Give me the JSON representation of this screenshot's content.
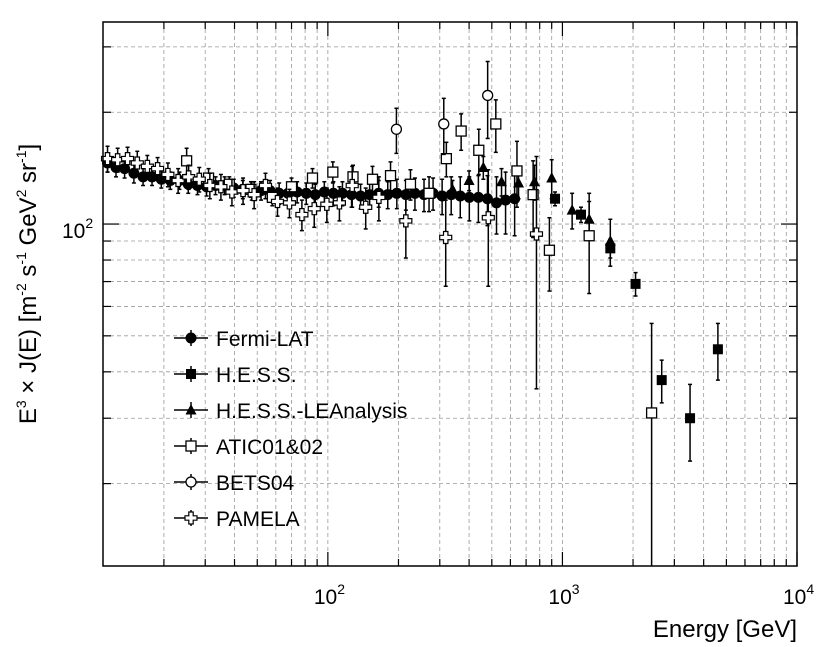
{
  "chart_data": {
    "type": "scatter",
    "title": "",
    "xlabel": "Energy [GeV]",
    "ylabel": "E^3 × J(E) [m^-2 s^-1 GeV^2 sr^-1]",
    "ylabel_parts": {
      "E": "E",
      "E_exp": "3",
      "times": " × J(E) [m",
      "m_exp": "-2",
      "s": " s",
      "s_exp": "-1",
      "gev": " GeV",
      "gev_exp": "2",
      "sr": " sr",
      "sr_exp": "-1",
      "close": "]"
    },
    "x_scale": "log",
    "y_scale": "log",
    "xlim": [
      11,
      10000
    ],
    "ylim": [
      12,
      350
    ],
    "grid": true,
    "legend_position": "lower-left",
    "x_ticks": [
      {
        "base": "10",
        "exp": "2",
        "value": 100
      },
      {
        "base": "10",
        "exp": "3",
        "value": 1000
      },
      {
        "base": "10",
        "exp": "4",
        "value": 10000
      }
    ],
    "y_ticks": [
      {
        "base": "10",
        "exp": "2",
        "value": 100
      }
    ],
    "series": [
      {
        "name": "Fermi-LAT",
        "marker": "circle-filled",
        "points": [
          [
            11.5,
            146,
            8
          ],
          [
            12.5,
            142,
            8
          ],
          [
            13.6,
            141,
            8
          ],
          [
            14.9,
            137,
            8
          ],
          [
            16.3,
            134,
            7
          ],
          [
            17.8,
            134,
            7
          ],
          [
            19.5,
            132,
            7
          ],
          [
            21.3,
            131,
            7
          ],
          [
            23.3,
            131,
            7
          ],
          [
            25.4,
            128,
            7
          ],
          [
            27.8,
            127,
            7
          ],
          [
            30.4,
            126,
            7
          ],
          [
            33.2,
            127,
            7
          ],
          [
            36.3,
            127,
            7
          ],
          [
            39.7,
            125,
            7
          ],
          [
            43.4,
            124,
            7
          ],
          [
            47.4,
            123,
            7
          ],
          [
            51.9,
            123,
            7
          ],
          [
            56.7,
            123,
            8
          ],
          [
            62.0,
            121,
            8
          ],
          [
            67.7,
            121,
            8
          ],
          [
            74.0,
            122,
            8
          ],
          [
            80.9,
            121,
            8
          ],
          [
            88.4,
            120,
            8
          ],
          [
            96.6,
            122,
            8
          ],
          [
            105.6,
            121,
            9
          ],
          [
            115.4,
            121,
            9
          ],
          [
            126.2,
            120,
            9
          ],
          [
            137.9,
            119,
            9
          ],
          [
            150.7,
            120,
            10
          ],
          [
            164.7,
            121,
            10
          ],
          [
            180.0,
            120,
            10
          ],
          [
            196.8,
            121,
            11
          ],
          [
            215.1,
            120,
            11
          ],
          [
            235.1,
            121,
            12
          ],
          [
            257.0,
            120,
            12
          ],
          [
            280.9,
            121,
            12
          ],
          [
            307.0,
            119,
            13
          ],
          [
            335.6,
            120,
            14
          ],
          [
            366.8,
            119,
            15
          ],
          [
            400.9,
            118,
            16
          ],
          [
            438.2,
            118,
            17
          ],
          [
            479.0,
            117,
            18
          ],
          [
            523.6,
            114,
            20
          ],
          [
            572.3,
            116,
            22
          ],
          [
            625.5,
            117,
            24
          ]
        ]
      },
      {
        "name": "H.E.S.S.",
        "marker": "square-filled",
        "points": [
          [
            930,
            117,
            5
          ],
          [
            1200,
            106,
            5
          ],
          [
            1600,
            86,
            5
          ],
          [
            2050,
            69,
            5
          ],
          [
            2650,
            38,
            5
          ],
          [
            3500,
            30,
            7
          ],
          [
            4600,
            46,
            8
          ]
        ]
      },
      {
        "name": "H.E.S.S.-LEAnalysis",
        "marker": "triangle-filled",
        "points": [
          [
            340,
            124,
            7
          ],
          [
            400,
            131,
            8
          ],
          [
            460,
            142,
            10
          ],
          [
            550,
            130,
            11
          ],
          [
            650,
            129,
            12
          ],
          [
            760,
            130,
            14
          ],
          [
            900,
            133,
            16
          ],
          [
            1100,
            109,
            12
          ],
          [
            1300,
            103,
            12
          ],
          [
            1600,
            90,
            13
          ]
        ]
      },
      {
        "name": "ATIC01&02",
        "marker": "square-open",
        "points": [
          [
            25,
            148,
            12
          ],
          [
            31,
            133,
            8
          ],
          [
            38,
            128,
            6
          ],
          [
            47,
            124,
            6
          ],
          [
            58,
            118,
            6
          ],
          [
            70,
            126,
            7
          ],
          [
            86,
            133,
            8
          ],
          [
            105,
            138,
            9
          ],
          [
            128,
            134,
            10
          ],
          [
            155,
            132,
            11
          ],
          [
            185,
            135,
            12
          ],
          [
            225,
            128,
            12
          ],
          [
            270,
            121,
            13
          ],
          [
            320,
            150,
            16
          ],
          [
            370,
            178,
            20
          ],
          [
            440,
            158,
            22
          ],
          [
            520,
            186,
            30
          ],
          [
            640,
            139,
            28
          ],
          [
            750,
            120,
            28
          ],
          [
            880,
            85,
            19
          ],
          [
            1300,
            93,
            28
          ],
          [
            2400,
            31,
            23
          ]
        ]
      },
      {
        "name": "BETS04",
        "marker": "circle-open",
        "points": [
          [
            196,
            180,
            25
          ],
          [
            312,
            186,
            32
          ],
          [
            480,
            222,
            52
          ]
        ]
      },
      {
        "name": "PAMELA",
        "marker": "cross-open",
        "points": [
          [
            11.5,
            150,
            12
          ],
          [
            12.7,
            149,
            11
          ],
          [
            14.0,
            150,
            11
          ],
          [
            15.4,
            146,
            11
          ],
          [
            17.0,
            143,
            10
          ],
          [
            18.8,
            141,
            10
          ],
          [
            20.8,
            136,
            10
          ],
          [
            23.0,
            131,
            10
          ],
          [
            25.5,
            134,
            10
          ],
          [
            28.3,
            132,
            10
          ],
          [
            31.4,
            127,
            10
          ],
          [
            35.0,
            126,
            10
          ],
          [
            39.0,
            122,
            10
          ],
          [
            43.5,
            123,
            10
          ],
          [
            48.5,
            120,
            10
          ],
          [
            54.2,
            127,
            10
          ],
          [
            61.0,
            115,
            10
          ],
          [
            68.6,
            114,
            10
          ],
          [
            77.5,
            106,
            10
          ],
          [
            87.5,
            110,
            12
          ],
          [
            99.0,
            113,
            12
          ],
          [
            112.0,
            114,
            12
          ],
          [
            127.0,
            127,
            16
          ],
          [
            145.0,
            111,
            14
          ],
          [
            165.0,
            118,
            16
          ],
          [
            215.0,
            102,
            21
          ],
          [
            318.0,
            92,
            24
          ],
          [
            483.0,
            104,
            36
          ],
          [
            775.0,
            94,
            58
          ]
        ]
      }
    ]
  }
}
